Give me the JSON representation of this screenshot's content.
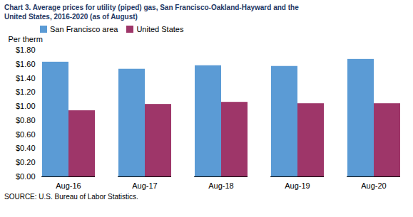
{
  "chart_data": {
    "type": "bar",
    "title": "Chart 3. Average prices for utility (piped) gas, San Francisco-Oakland-Hayward and the",
    "subtitle": "United States, 2016-2020  (as of August)",
    "y_label": "Per therm",
    "source": "SOURCE: U.S. Bureau of Labor Statistics.",
    "categories": [
      "Aug-16",
      "Aug-17",
      "Aug-18",
      "Aug-19",
      "Aug-20"
    ],
    "series": [
      {
        "name": "San Francisco area",
        "color": "#5B9BD5",
        "values": [
          1.63,
          1.53,
          1.58,
          1.57,
          1.67
        ]
      },
      {
        "name": "United States",
        "color": "#9E3669",
        "values": [
          0.94,
          1.03,
          1.06,
          1.04,
          1.04
        ]
      }
    ],
    "ylim": [
      0.0,
      1.8
    ],
    "yticks": [
      {
        "value": 0.0,
        "label": "$0.00"
      },
      {
        "value": 0.2,
        "label": "$0.20"
      },
      {
        "value": 0.4,
        "label": "$0.40"
      },
      {
        "value": 0.6,
        "label": "$0.60"
      },
      {
        "value": 0.8,
        "label": "$0.80"
      },
      {
        "value": 1.0,
        "label": "$1.00"
      },
      {
        "value": 1.2,
        "label": "$1.20"
      },
      {
        "value": 1.4,
        "label": "$1.40"
      },
      {
        "value": 1.6,
        "label": "$1.60"
      },
      {
        "value": 1.8,
        "label": "$1.80"
      }
    ],
    "grid": false,
    "legend": "upper left"
  }
}
